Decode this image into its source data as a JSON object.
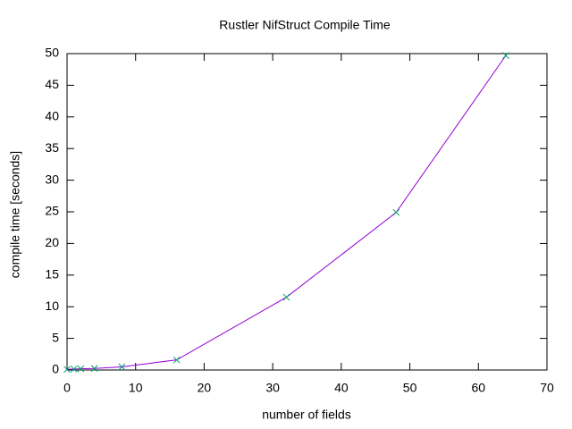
{
  "chart_data": {
    "type": "line",
    "title": "Rustler NifStruct Compile Time",
    "xlabel": "number of fields",
    "ylabel": "compile time [seconds]",
    "x": [
      0,
      1,
      2,
      4,
      8,
      16,
      32,
      48,
      64
    ],
    "series": [
      {
        "color": "#9400d3",
        "marker_color": "#009e73",
        "values": [
          0.1,
          0.15,
          0.2,
          0.25,
          0.5,
          1.6,
          11.5,
          24.9,
          49.7
        ]
      }
    ],
    "xlim": [
      0,
      70
    ],
    "xticks": [
      0,
      10,
      20,
      30,
      40,
      50,
      60,
      70
    ],
    "ylim": [
      0,
      50
    ],
    "yticks": [
      0,
      5,
      10,
      15,
      20,
      25,
      30,
      35,
      40,
      45,
      50
    ],
    "grid": false
  }
}
